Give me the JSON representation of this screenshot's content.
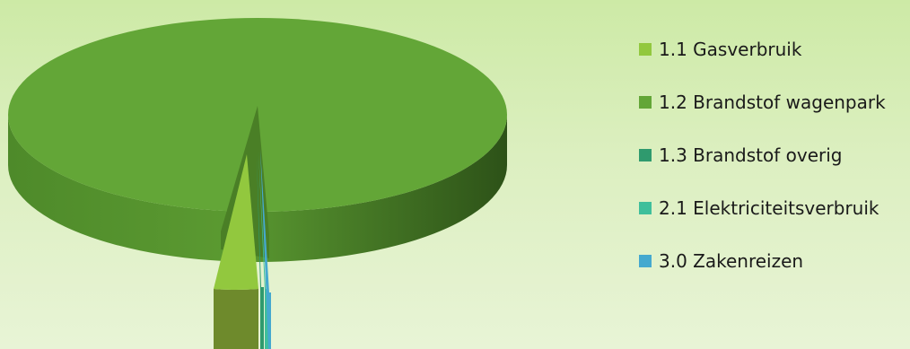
{
  "chart_data": {
    "type": "pie",
    "style": "3d-exploded",
    "categories": [
      "1.1 Gasverbruik",
      "1.2 Brandstof wagenpark",
      "1.3 Brandstof overig",
      "2.1 Elektriciteitsverbruik",
      "3.0 Zakenreizen"
    ],
    "values": [
      3.3,
      95.6,
      0.3,
      0.5,
      0.3
    ],
    "colors": [
      "#92c83e",
      "#63a637",
      "#2f9a6e",
      "#3fbf9b",
      "#45a9cf"
    ],
    "legend_position": "right"
  }
}
